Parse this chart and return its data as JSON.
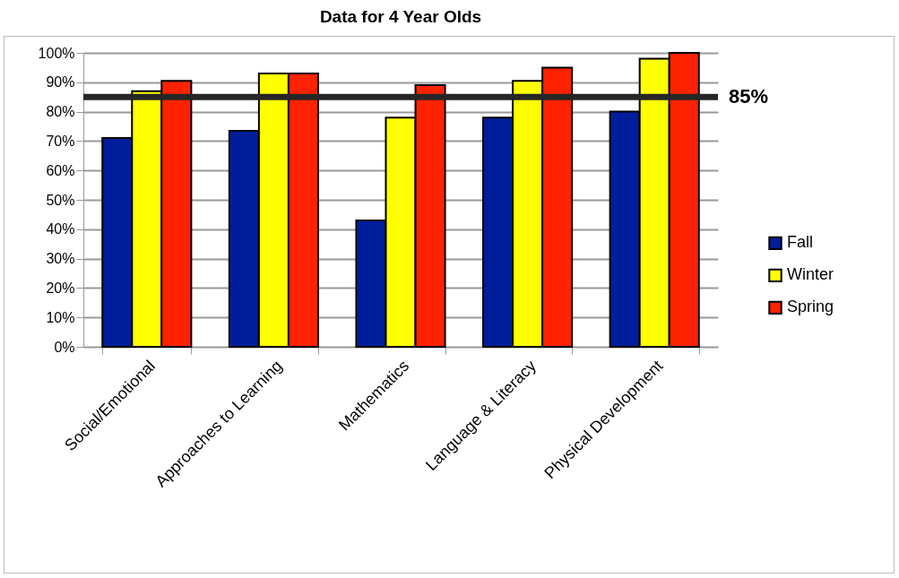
{
  "chart_data": {
    "type": "bar",
    "title": "Data for 4 Year Olds",
    "categories": [
      "Social/Emotional",
      "Approaches to Learning",
      "Mathematics",
      "Language & Literacy",
      "Physical Development"
    ],
    "series": [
      {
        "name": "Fall",
        "color": "#001e9c",
        "values": [
          71,
          73.5,
          43,
          78,
          80
        ]
      },
      {
        "name": "Winter",
        "color": "#ffff00",
        "values": [
          87,
          93,
          78,
          90.5,
          98
        ]
      },
      {
        "name": "Spring",
        "color": "#ff2200",
        "values": [
          90.5,
          93,
          89,
          95,
          100
        ]
      }
    ],
    "ylim": [
      0,
      100
    ],
    "yticks": [
      {
        "value": 0,
        "label": "0%"
      },
      {
        "value": 10,
        "label": "10%"
      },
      {
        "value": 20,
        "label": "20%"
      },
      {
        "value": 30,
        "label": "30%"
      },
      {
        "value": 40,
        "label": "40%"
      },
      {
        "value": 50,
        "label": "50%"
      },
      {
        "value": 60,
        "label": "60%"
      },
      {
        "value": 70,
        "label": "70%"
      },
      {
        "value": 80,
        "label": "80%"
      },
      {
        "value": 90,
        "label": "90%"
      },
      {
        "value": 100,
        "label": "100%"
      }
    ],
    "ref_lines": [
      {
        "axis": "y",
        "value": 85,
        "label": "85%",
        "color": "#262626"
      }
    ],
    "grid": "y",
    "legend": "right"
  }
}
